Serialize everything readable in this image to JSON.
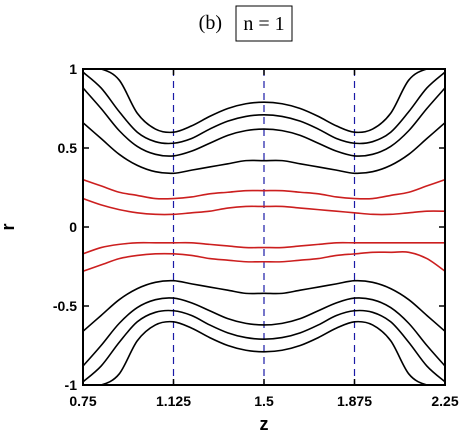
{
  "panel_label": "(b)",
  "panel_box_text": "n = 1",
  "chart_data": {
    "type": "line",
    "title": "",
    "xlabel": "z",
    "ylabel": "r",
    "xlim": [
      0.75,
      2.25
    ],
    "ylim": [
      -1,
      1
    ],
    "xticks": [
      0.75,
      1.125,
      1.5,
      1.875,
      2.25
    ],
    "xtick_labels": [
      "0.75",
      "1.125",
      "1.5",
      "1.875",
      "2.25"
    ],
    "yticks": [
      -1,
      -0.5,
      0,
      0.5,
      1
    ],
    "ytick_labels": [
      "-1",
      "-0.5",
      "0",
      "0.5",
      "1"
    ],
    "grid": false,
    "reference_lines": {
      "x": [
        1.125,
        1.5,
        1.875
      ],
      "style": "dashed",
      "color": "#1a1aa6"
    },
    "colors": {
      "outer": "#000000",
      "inner": "#cc1f1f"
    },
    "x": [
      0.75,
      0.825,
      0.9,
      0.975,
      1.05,
      1.125,
      1.2,
      1.275,
      1.35,
      1.425,
      1.5,
      1.575,
      1.65,
      1.725,
      1.8,
      1.875,
      1.95,
      2.025,
      2.1,
      2.175,
      2.25
    ],
    "series": [
      {
        "color": "#000000",
        "values": [
          1.0,
          1.0,
          0.93,
          0.72,
          0.62,
          0.6,
          0.64,
          0.7,
          0.75,
          0.78,
          0.79,
          0.78,
          0.75,
          0.7,
          0.64,
          0.6,
          0.62,
          0.72,
          0.93,
          1.0,
          1.0
        ]
      },
      {
        "color": "#000000",
        "values": [
          0.98,
          0.88,
          0.73,
          0.6,
          0.54,
          0.53,
          0.56,
          0.62,
          0.67,
          0.7,
          0.71,
          0.7,
          0.67,
          0.62,
          0.56,
          0.53,
          0.54,
          0.6,
          0.73,
          0.88,
          0.98
        ]
      },
      {
        "color": "#000000",
        "values": [
          0.88,
          0.75,
          0.61,
          0.51,
          0.46,
          0.45,
          0.48,
          0.53,
          0.58,
          0.61,
          0.62,
          0.61,
          0.58,
          0.53,
          0.48,
          0.45,
          0.46,
          0.51,
          0.61,
          0.75,
          0.88
        ]
      },
      {
        "color": "#000000",
        "values": [
          0.66,
          0.56,
          0.46,
          0.39,
          0.35,
          0.34,
          0.36,
          0.38,
          0.4,
          0.42,
          0.42,
          0.42,
          0.4,
          0.38,
          0.36,
          0.34,
          0.35,
          0.39,
          0.46,
          0.56,
          0.66
        ]
      },
      {
        "color": "#cc1f1f",
        "values": [
          0.3,
          0.26,
          0.22,
          0.2,
          0.18,
          0.18,
          0.19,
          0.21,
          0.22,
          0.23,
          0.23,
          0.23,
          0.22,
          0.21,
          0.19,
          0.18,
          0.18,
          0.2,
          0.22,
          0.26,
          0.3
        ]
      },
      {
        "color": "#cc1f1f",
        "values": [
          0.18,
          0.14,
          0.11,
          0.09,
          0.08,
          0.08,
          0.09,
          0.1,
          0.12,
          0.13,
          0.13,
          0.13,
          0.12,
          0.11,
          0.1,
          0.09,
          0.08,
          0.08,
          0.09,
          0.1,
          0.1
        ]
      },
      {
        "color": "#cc1f1f",
        "values": [
          -0.17,
          -0.13,
          -0.11,
          -0.1,
          -0.1,
          -0.1,
          -0.1,
          -0.11,
          -0.12,
          -0.13,
          -0.13,
          -0.13,
          -0.12,
          -0.11,
          -0.1,
          -0.1,
          -0.1,
          -0.1,
          -0.1,
          -0.1,
          -0.1
        ]
      },
      {
        "color": "#cc1f1f",
        "values": [
          -0.28,
          -0.24,
          -0.2,
          -0.18,
          -0.17,
          -0.17,
          -0.18,
          -0.2,
          -0.21,
          -0.22,
          -0.22,
          -0.22,
          -0.21,
          -0.2,
          -0.18,
          -0.17,
          -0.16,
          -0.16,
          -0.16,
          -0.2,
          -0.28
        ]
      },
      {
        "color": "#000000",
        "values": [
          -0.66,
          -0.56,
          -0.46,
          -0.39,
          -0.35,
          -0.34,
          -0.36,
          -0.38,
          -0.4,
          -0.42,
          -0.42,
          -0.42,
          -0.4,
          -0.38,
          -0.36,
          -0.34,
          -0.35,
          -0.39,
          -0.46,
          -0.56,
          -0.66
        ]
      },
      {
        "color": "#000000",
        "values": [
          -0.88,
          -0.75,
          -0.61,
          -0.51,
          -0.46,
          -0.45,
          -0.48,
          -0.53,
          -0.58,
          -0.61,
          -0.62,
          -0.61,
          -0.58,
          -0.53,
          -0.48,
          -0.45,
          -0.46,
          -0.51,
          -0.61,
          -0.75,
          -0.88
        ]
      },
      {
        "color": "#000000",
        "values": [
          -0.98,
          -0.88,
          -0.73,
          -0.6,
          -0.54,
          -0.53,
          -0.56,
          -0.62,
          -0.67,
          -0.7,
          -0.71,
          -0.7,
          -0.67,
          -0.62,
          -0.56,
          -0.53,
          -0.54,
          -0.6,
          -0.73,
          -0.88,
          -0.98
        ]
      },
      {
        "color": "#000000",
        "values": [
          -1.0,
          -1.0,
          -0.93,
          -0.72,
          -0.62,
          -0.6,
          -0.64,
          -0.7,
          -0.75,
          -0.78,
          -0.79,
          -0.78,
          -0.75,
          -0.7,
          -0.64,
          -0.6,
          -0.62,
          -0.72,
          -0.93,
          -1.0,
          -1.0
        ]
      }
    ]
  }
}
